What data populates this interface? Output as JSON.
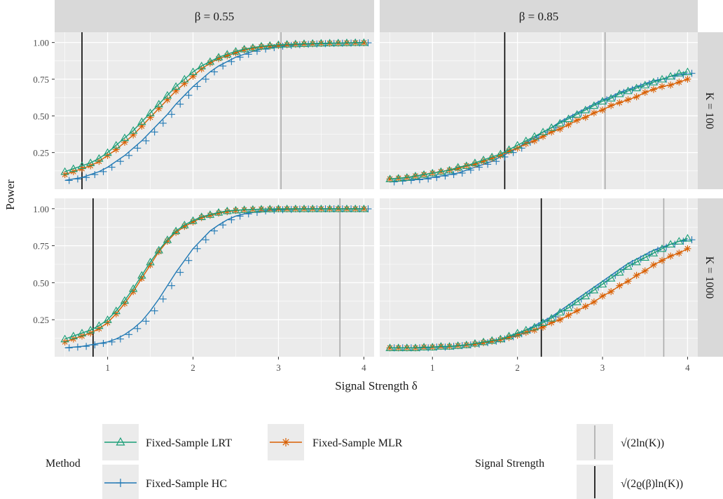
{
  "chart_data": {
    "type": "line",
    "xlabel": "Signal Strength  δ",
    "ylabel": "Power",
    "xlim": [
      0.38,
      4.12
    ],
    "ylim": [
      0.0,
      1.07
    ],
    "x_ticks": [
      1,
      2,
      3,
      4
    ],
    "y_ticks": [
      0.25,
      0.5,
      0.75,
      1.0
    ],
    "y_tick_labels": [
      "0.25",
      "0.50",
      "0.75",
      "1.00"
    ],
    "grid": true,
    "column_facets": [
      "β = 0.55",
      "β = 0.85"
    ],
    "row_facets": [
      "K = 100",
      "K = 1000"
    ],
    "x": [
      0.5,
      0.6,
      0.7,
      0.8,
      0.9,
      1.0,
      1.1,
      1.2,
      1.3,
      1.4,
      1.5,
      1.6,
      1.7,
      1.8,
      1.9,
      2.0,
      2.1,
      2.2,
      2.3,
      2.4,
      2.5,
      2.6,
      2.7,
      2.8,
      2.9,
      3.0,
      3.1,
      3.2,
      3.3,
      3.4,
      3.5,
      3.6,
      3.7,
      3.8,
      3.9,
      4.0
    ],
    "panels": [
      {
        "row": 0,
        "col": 0,
        "vline_black": 0.7,
        "vline_gray": 3.03,
        "series": [
          {
            "name": "Fixed-Sample LRT",
            "values": [
              0.12,
              0.14,
              0.16,
              0.18,
              0.21,
              0.25,
              0.3,
              0.35,
              0.4,
              0.46,
              0.52,
              0.58,
              0.64,
              0.7,
              0.75,
              0.8,
              0.84,
              0.87,
              0.9,
              0.92,
              0.94,
              0.955,
              0.965,
              0.975,
              0.98,
              0.985,
              0.988,
              0.99,
              0.992,
              0.994,
              0.995,
              0.996,
              0.997,
              0.998,
              0.999,
              0.999
            ]
          },
          {
            "name": "Fixed-Sample MLR",
            "values": [
              0.1,
              0.12,
              0.14,
              0.16,
              0.19,
              0.23,
              0.27,
              0.32,
              0.37,
              0.43,
              0.49,
              0.55,
              0.61,
              0.67,
              0.72,
              0.77,
              0.82,
              0.86,
              0.89,
              0.91,
              0.93,
              0.95,
              0.96,
              0.97,
              0.975,
              0.98,
              0.985,
              0.988,
              0.99,
              0.992,
              0.994,
              0.995,
              0.996,
              0.997,
              0.998,
              0.998
            ]
          },
          {
            "name": "Fixed-Sample HC",
            "values": [
              0.06,
              0.07,
              0.08,
              0.1,
              0.12,
              0.15,
              0.19,
              0.23,
              0.28,
              0.33,
              0.39,
              0.45,
              0.51,
              0.58,
              0.64,
              0.7,
              0.75,
              0.8,
              0.84,
              0.87,
              0.9,
              0.92,
              0.94,
              0.955,
              0.965,
              0.975,
              0.98,
              0.985,
              0.988,
              0.99,
              0.992,
              0.994,
              0.995,
              0.996,
              0.997,
              0.998
            ]
          }
        ]
      },
      {
        "row": 0,
        "col": 1,
        "vline_black": 1.85,
        "vline_gray": 3.03,
        "series": [
          {
            "name": "Fixed-Sample LRT",
            "values": [
              0.07,
              0.075,
              0.08,
              0.09,
              0.1,
              0.11,
              0.12,
              0.13,
              0.15,
              0.16,
              0.18,
              0.2,
              0.22,
              0.24,
              0.27,
              0.3,
              0.33,
              0.36,
              0.39,
              0.42,
              0.45,
              0.48,
              0.51,
              0.54,
              0.57,
              0.6,
              0.62,
              0.65,
              0.67,
              0.69,
              0.71,
              0.73,
              0.75,
              0.77,
              0.79,
              0.8
            ]
          },
          {
            "name": "Fixed-Sample MLR",
            "values": [
              0.07,
              0.075,
              0.08,
              0.09,
              0.1,
              0.11,
              0.12,
              0.13,
              0.14,
              0.16,
              0.17,
              0.19,
              0.21,
              0.23,
              0.26,
              0.28,
              0.31,
              0.33,
              0.36,
              0.39,
              0.41,
              0.44,
              0.47,
              0.49,
              0.52,
              0.54,
              0.57,
              0.59,
              0.61,
              0.63,
              0.66,
              0.68,
              0.7,
              0.71,
              0.73,
              0.75
            ]
          },
          {
            "name": "Fixed-Sample HC",
            "values": [
              0.05,
              0.055,
              0.06,
              0.065,
              0.07,
              0.08,
              0.09,
              0.1,
              0.11,
              0.13,
              0.15,
              0.17,
              0.19,
              0.22,
              0.25,
              0.28,
              0.32,
              0.35,
              0.39,
              0.42,
              0.46,
              0.49,
              0.52,
              0.55,
              0.58,
              0.61,
              0.63,
              0.66,
              0.68,
              0.7,
              0.72,
              0.74,
              0.75,
              0.77,
              0.78,
              0.79
            ]
          }
        ]
      },
      {
        "row": 1,
        "col": 0,
        "vline_black": 0.83,
        "vline_gray": 3.72,
        "series": [
          {
            "name": "Fixed-Sample LRT",
            "values": [
              0.12,
              0.14,
              0.16,
              0.18,
              0.21,
              0.25,
              0.31,
              0.38,
              0.46,
              0.55,
              0.64,
              0.72,
              0.79,
              0.85,
              0.89,
              0.92,
              0.945,
              0.96,
              0.975,
              0.985,
              0.99,
              0.993,
              0.995,
              0.997,
              0.998,
              0.999,
              0.999,
              0.999,
              0.999,
              0.999,
              0.999,
              0.999,
              0.999,
              0.999,
              0.999,
              0.999
            ]
          },
          {
            "name": "Fixed-Sample MLR",
            "values": [
              0.1,
              0.12,
              0.14,
              0.16,
              0.19,
              0.23,
              0.29,
              0.36,
              0.44,
              0.53,
              0.62,
              0.71,
              0.78,
              0.84,
              0.88,
              0.91,
              0.94,
              0.955,
              0.97,
              0.98,
              0.988,
              0.992,
              0.995,
              0.997,
              0.998,
              0.999,
              0.999,
              0.999,
              0.999,
              0.999,
              0.999,
              0.999,
              0.999,
              0.999,
              0.999,
              0.999
            ]
          },
          {
            "name": "Fixed-Sample HC",
            "values": [
              0.06,
              0.065,
              0.07,
              0.08,
              0.09,
              0.1,
              0.12,
              0.15,
              0.19,
              0.24,
              0.31,
              0.39,
              0.48,
              0.57,
              0.65,
              0.73,
              0.79,
              0.85,
              0.89,
              0.925,
              0.95,
              0.965,
              0.975,
              0.985,
              0.99,
              0.993,
              0.995,
              0.997,
              0.998,
              0.999,
              0.999,
              0.999,
              0.999,
              0.999,
              0.999,
              0.999
            ]
          }
        ]
      },
      {
        "row": 1,
        "col": 1,
        "vline_black": 2.28,
        "vline_gray": 3.72,
        "series": [
          {
            "name": "Fixed-Sample LRT",
            "values": [
              0.06,
              0.06,
              0.06,
              0.06,
              0.065,
              0.065,
              0.07,
              0.07,
              0.075,
              0.08,
              0.09,
              0.1,
              0.11,
              0.12,
              0.14,
              0.16,
              0.18,
              0.2,
              0.23,
              0.26,
              0.3,
              0.33,
              0.37,
              0.41,
              0.45,
              0.49,
              0.53,
              0.57,
              0.61,
              0.64,
              0.67,
              0.7,
              0.73,
              0.76,
              0.78,
              0.8
            ]
          },
          {
            "name": "Fixed-Sample MLR",
            "values": [
              0.06,
              0.06,
              0.06,
              0.06,
              0.065,
              0.065,
              0.07,
              0.07,
              0.075,
              0.08,
              0.085,
              0.095,
              0.105,
              0.115,
              0.13,
              0.145,
              0.165,
              0.18,
              0.2,
              0.23,
              0.25,
              0.28,
              0.31,
              0.34,
              0.37,
              0.41,
              0.44,
              0.48,
              0.51,
              0.55,
              0.58,
              0.62,
              0.65,
              0.68,
              0.7,
              0.73
            ]
          },
          {
            "name": "Fixed-Sample HC",
            "values": [
              0.06,
              0.06,
              0.06,
              0.06,
              0.06,
              0.065,
              0.065,
              0.07,
              0.075,
              0.08,
              0.085,
              0.095,
              0.105,
              0.12,
              0.135,
              0.155,
              0.18,
              0.21,
              0.24,
              0.27,
              0.31,
              0.35,
              0.39,
              0.43,
              0.47,
              0.51,
              0.55,
              0.59,
              0.63,
              0.66,
              0.69,
              0.72,
              0.74,
              0.76,
              0.78,
              0.79
            ]
          }
        ]
      }
    ],
    "legend": {
      "placement": "bottom",
      "method_title": "Method",
      "methods": [
        {
          "name": "Fixed-Sample LRT",
          "color": "#1b9e77",
          "marker": "triangle"
        },
        {
          "name": "Fixed-Sample MLR",
          "color": "#d95f02",
          "marker": "asterisk"
        },
        {
          "name": "Fixed-Sample HC",
          "color": "#1f78b4",
          "marker": "plus"
        }
      ],
      "signal_title": "Signal Strength",
      "signal": [
        {
          "label": "√(2ln(K))",
          "color": "#aaaaaa"
        },
        {
          "label": "√(2ϱ(β)ln(K))",
          "color": "#000000"
        }
      ]
    },
    "colors": {
      "panel_bg": "#ebebeb",
      "strip_bg": "#d9d9d9",
      "grid": "#ffffff"
    }
  }
}
